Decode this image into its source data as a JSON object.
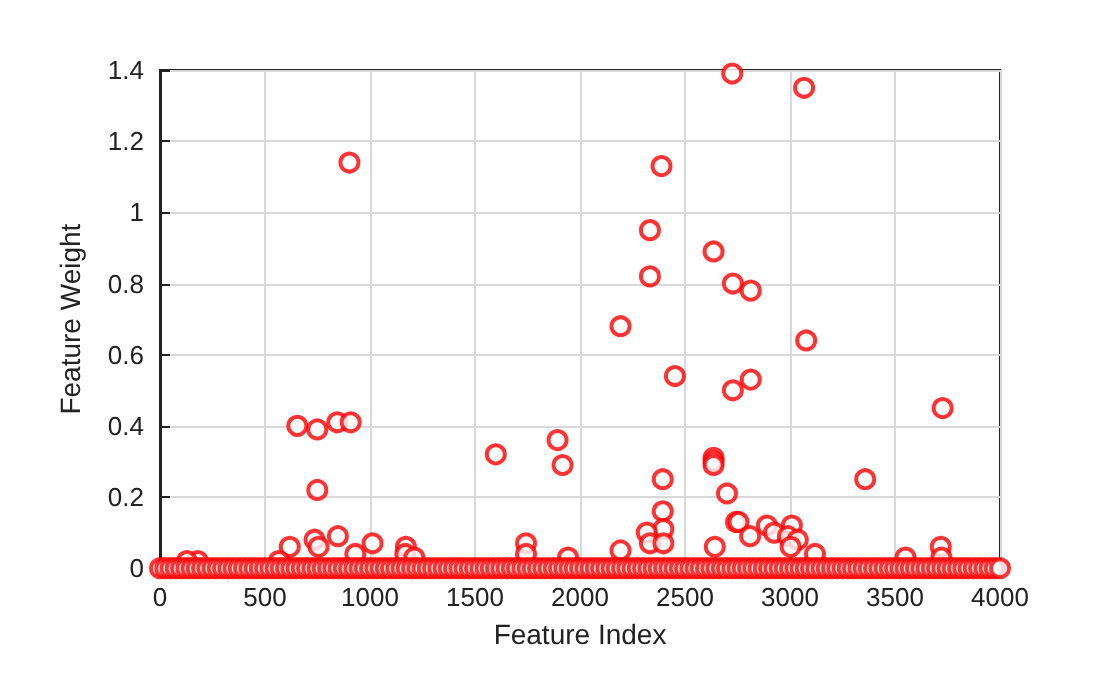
{
  "chart_data": {
    "type": "scatter",
    "xlabel": "Feature Index",
    "ylabel": "Feature Weight",
    "xlim": [
      0,
      4000
    ],
    "xticks": [
      0,
      500,
      1000,
      1500,
      2000,
      2500,
      3000,
      3500,
      4000
    ],
    "ylim": [
      0,
      1.4
    ],
    "yticks": [
      0,
      0.2,
      0.4,
      0.6,
      0.8,
      1,
      1.2,
      1.4
    ],
    "grid": true,
    "marker": "circle",
    "series": [
      {
        "color": "#ff0000",
        "x": [
          902,
          654,
          749,
          844,
          908,
          749,
          1599,
          1893,
          1917,
          2193,
          618,
          736,
          847,
          1012,
          1171,
          1743,
          180,
          566,
          930,
          1943,
          755,
          1168,
          1211,
          1743,
          128,
          2725,
          3067,
          2388,
          2333,
          2636,
          2333,
          2728,
          2813,
          3077,
          2452,
          2813,
          2728,
          3727,
          2636,
          2636,
          2636,
          2394,
          3358,
          2700,
          2394,
          2397,
          2318,
          2743,
          2755,
          2890,
          2924,
          3009,
          2810,
          2990,
          3037,
          2333,
          2397,
          3003,
          2193,
          2642,
          3119,
          3550,
          3718,
          3721
        ],
        "values": [
          1.14,
          0.4,
          0.39,
          0.41,
          0.41,
          0.22,
          0.32,
          0.36,
          0.29,
          0.68,
          0.06,
          0.08,
          0.09,
          0.07,
          0.06,
          0.07,
          0.02,
          0.02,
          0.04,
          0.03,
          0.06,
          0.04,
          0.03,
          0.04,
          0.02,
          1.39,
          1.35,
          1.13,
          0.95,
          0.89,
          0.82,
          0.8,
          0.78,
          0.64,
          0.54,
          0.53,
          0.5,
          0.45,
          0.31,
          0.3,
          0.29,
          0.25,
          0.25,
          0.21,
          0.16,
          0.11,
          0.1,
          0.13,
          0.13,
          0.12,
          0.1,
          0.12,
          0.09,
          0.09,
          0.08,
          0.07,
          0.07,
          0.06,
          0.05,
          0.06,
          0.04,
          0.03,
          0.06,
          0.03
        ]
      },
      {
        "color": "#ff0000",
        "x": [
          0,
          25,
          50,
          75,
          100,
          125,
          150,
          175,
          200,
          225,
          250,
          275,
          300,
          325,
          350,
          375,
          400,
          425,
          450,
          475,
          500,
          525,
          550,
          575,
          600,
          625,
          650,
          675,
          700,
          725,
          750,
          775,
          800,
          825,
          850,
          875,
          900,
          925,
          950,
          975,
          1000,
          1025,
          1050,
          1075,
          1100,
          1125,
          1150,
          1175,
          1200,
          1225,
          1250,
          1275,
          1300,
          1325,
          1350,
          1375,
          1400,
          1425,
          1450,
          1475,
          1500,
          1525,
          1550,
          1575,
          1600,
          1625,
          1650,
          1675,
          1700,
          1725,
          1750,
          1775,
          1800,
          1825,
          1850,
          1875,
          1900,
          1925,
          1950,
          1975,
          2000,
          2025,
          2050,
          2075,
          2100,
          2125,
          2150,
          2175,
          2200,
          2225,
          2250,
          2275,
          2300,
          2325,
          2350,
          2375,
          2400,
          2425,
          2450,
          2475,
          2500,
          2525,
          2550,
          2575,
          2600,
          2625,
          2650,
          2675,
          2700,
          2725,
          2750,
          2775,
          2800,
          2825,
          2850,
          2875,
          2900,
          2925,
          2950,
          2975,
          3000,
          3025,
          3050,
          3075,
          3100,
          3125,
          3150,
          3175,
          3200,
          3225,
          3250,
          3275,
          3300,
          3325,
          3350,
          3375,
          3400,
          3425,
          3450,
          3475,
          3500,
          3525,
          3550,
          3575,
          3600,
          3625,
          3650,
          3675,
          3700,
          3725,
          3750,
          3775,
          3800,
          3825,
          3850,
          3875,
          3900,
          3925,
          3950,
          3975,
          4000
        ],
        "values": [
          0,
          0,
          0,
          0,
          0,
          0,
          0,
          0,
          0,
          0,
          0,
          0,
          0,
          0,
          0,
          0,
          0,
          0,
          0,
          0,
          0,
          0,
          0,
          0,
          0,
          0,
          0,
          0,
          0,
          0,
          0,
          0,
          0,
          0,
          0,
          0,
          0,
          0,
          0,
          0,
          0,
          0,
          0,
          0,
          0,
          0,
          0,
          0,
          0,
          0,
          0,
          0,
          0,
          0,
          0,
          0,
          0,
          0,
          0,
          0,
          0,
          0,
          0,
          0,
          0,
          0,
          0,
          0,
          0,
          0,
          0,
          0,
          0,
          0,
          0,
          0,
          0,
          0,
          0,
          0,
          0,
          0,
          0,
          0,
          0,
          0,
          0,
          0,
          0,
          0,
          0,
          0,
          0,
          0,
          0,
          0,
          0,
          0,
          0,
          0,
          0,
          0,
          0,
          0,
          0,
          0,
          0,
          0,
          0,
          0,
          0,
          0,
          0,
          0,
          0,
          0,
          0,
          0,
          0,
          0,
          0,
          0,
          0,
          0,
          0,
          0,
          0,
          0,
          0,
          0,
          0,
          0,
          0,
          0,
          0,
          0,
          0,
          0,
          0,
          0,
          0,
          0,
          0,
          0,
          0,
          0,
          0,
          0,
          0,
          0,
          0,
          0,
          0,
          0,
          0,
          0,
          0,
          0,
          0,
          0,
          0
        ]
      }
    ]
  }
}
